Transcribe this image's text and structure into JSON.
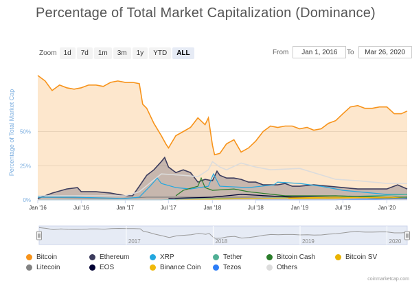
{
  "title": "Percentage of Total Market Capitalization (Dominance)",
  "zoom": {
    "label": "Zoom",
    "buttons": [
      "1d",
      "7d",
      "1m",
      "3m",
      "1y",
      "YTD",
      "ALL"
    ],
    "active": "ALL"
  },
  "range": {
    "from_label": "From",
    "from_value": "Jan 1, 2016",
    "to_label": "To",
    "to_value": "Mar 26, 2020"
  },
  "credit": "coinmarketcap.com",
  "colors": {
    "bitcoin": "#f7931a",
    "ethereum": "#3c3c5d",
    "xrp": "#23a7df",
    "tether": "#50af95",
    "bitcoin_cash": "#2b7d2b",
    "bitcoin_sv": "#eab300",
    "litecoin": "#838383",
    "eos": "#000033",
    "binance_coin": "#f0b90b",
    "tezos": "#2c7df7",
    "others": "#dcdcdc"
  },
  "chart_data": {
    "type": "area",
    "title": "Percentage of Total Market Capitalization (Dominance)",
    "ylabel": "Percentage of Total Market Cap",
    "xlabel": "",
    "ylim": [
      0,
      100
    ],
    "yticks": [
      "0%",
      "25%",
      "50%"
    ],
    "yticks_values": [
      0,
      25,
      50
    ],
    "xlim": [
      "2016-01-01",
      "2020-03-26"
    ],
    "xticks": [
      {
        "date": "2016-01-01",
        "label": "Jan '16"
      },
      {
        "date": "2016-07-01",
        "label": "Jul '16"
      },
      {
        "date": "2017-01-01",
        "label": "Jan '17"
      },
      {
        "date": "2017-07-01",
        "label": "Jul '17"
      },
      {
        "date": "2018-01-01",
        "label": "Jan '18"
      },
      {
        "date": "2018-07-01",
        "label": "Jul '18"
      },
      {
        "date": "2019-01-01",
        "label": "Jan '19"
      },
      {
        "date": "2019-07-01",
        "label": "Jul '19"
      },
      {
        "date": "2020-01-01",
        "label": "Jan '20"
      }
    ],
    "navigator_labels": [
      {
        "date": "2017-01-01",
        "label": "2017"
      },
      {
        "date": "2018-01-01",
        "label": "2018"
      },
      {
        "date": "2019-01-01",
        "label": "2019"
      },
      {
        "date": "2020-01-01",
        "label": "2020"
      }
    ],
    "grid": true,
    "legend_position": "bottom",
    "series": [
      {
        "name": "Bitcoin",
        "key": "bitcoin",
        "filled": true,
        "points": [
          [
            "2016-01-01",
            91
          ],
          [
            "2016-02-01",
            87
          ],
          [
            "2016-03-01",
            80
          ],
          [
            "2016-04-01",
            84
          ],
          [
            "2016-05-01",
            82
          ],
          [
            "2016-06-01",
            81
          ],
          [
            "2016-07-01",
            82
          ],
          [
            "2016-08-01",
            84
          ],
          [
            "2016-09-01",
            84
          ],
          [
            "2016-10-01",
            83
          ],
          [
            "2016-11-01",
            86
          ],
          [
            "2016-12-01",
            87
          ],
          [
            "2017-01-01",
            86
          ],
          [
            "2017-02-01",
            86
          ],
          [
            "2017-03-01",
            85
          ],
          [
            "2017-03-15",
            70
          ],
          [
            "2017-04-01",
            67
          ],
          [
            "2017-05-01",
            56
          ],
          [
            "2017-06-01",
            47
          ],
          [
            "2017-06-20",
            41
          ],
          [
            "2017-07-01",
            38
          ],
          [
            "2017-08-01",
            47
          ],
          [
            "2017-09-01",
            50
          ],
          [
            "2017-10-01",
            53
          ],
          [
            "2017-11-01",
            60
          ],
          [
            "2017-12-01",
            55
          ],
          [
            "2017-12-15",
            60
          ],
          [
            "2018-01-01",
            40
          ],
          [
            "2018-01-10",
            33
          ],
          [
            "2018-02-01",
            34
          ],
          [
            "2018-03-01",
            41
          ],
          [
            "2018-04-01",
            44
          ],
          [
            "2018-05-01",
            35
          ],
          [
            "2018-06-01",
            38
          ],
          [
            "2018-07-01",
            43
          ],
          [
            "2018-08-01",
            50
          ],
          [
            "2018-09-01",
            54
          ],
          [
            "2018-10-01",
            53
          ],
          [
            "2018-11-01",
            54
          ],
          [
            "2018-12-01",
            54
          ],
          [
            "2019-01-01",
            52
          ],
          [
            "2019-02-01",
            53
          ],
          [
            "2019-03-01",
            51
          ],
          [
            "2019-04-01",
            52
          ],
          [
            "2019-05-01",
            56
          ],
          [
            "2019-06-01",
            58
          ],
          [
            "2019-07-01",
            63
          ],
          [
            "2019-08-01",
            68
          ],
          [
            "2019-09-01",
            69
          ],
          [
            "2019-10-01",
            67
          ],
          [
            "2019-11-01",
            67
          ],
          [
            "2019-12-01",
            68
          ],
          [
            "2020-01-01",
            68
          ],
          [
            "2020-02-01",
            63
          ],
          [
            "2020-03-01",
            63
          ],
          [
            "2020-03-26",
            65
          ]
        ]
      },
      {
        "name": "Ethereum",
        "key": "ethereum",
        "filled": true,
        "points": [
          [
            "2016-01-01",
            1
          ],
          [
            "2016-03-01",
            5
          ],
          [
            "2016-05-01",
            8
          ],
          [
            "2016-06-15",
            9
          ],
          [
            "2016-07-01",
            6
          ],
          [
            "2016-09-01",
            6
          ],
          [
            "2016-11-01",
            5
          ],
          [
            "2017-01-01",
            3
          ],
          [
            "2017-02-01",
            3
          ],
          [
            "2017-03-01",
            10
          ],
          [
            "2017-04-01",
            18
          ],
          [
            "2017-05-01",
            22
          ],
          [
            "2017-06-01",
            28
          ],
          [
            "2017-06-15",
            31
          ],
          [
            "2017-07-01",
            24
          ],
          [
            "2017-08-01",
            20
          ],
          [
            "2017-09-01",
            22
          ],
          [
            "2017-10-01",
            20
          ],
          [
            "2017-11-01",
            13
          ],
          [
            "2017-12-01",
            15
          ],
          [
            "2018-01-01",
            14
          ],
          [
            "2018-01-20",
            21
          ],
          [
            "2018-02-01",
            18
          ],
          [
            "2018-03-01",
            16
          ],
          [
            "2018-04-01",
            16
          ],
          [
            "2018-05-01",
            15
          ],
          [
            "2018-06-01",
            13
          ],
          [
            "2018-07-01",
            13
          ],
          [
            "2018-08-01",
            11
          ],
          [
            "2018-09-01",
            11
          ],
          [
            "2018-10-01",
            11
          ],
          [
            "2018-11-01",
            12
          ],
          [
            "2018-12-01",
            10
          ],
          [
            "2019-01-01",
            10
          ],
          [
            "2019-03-01",
            11
          ],
          [
            "2019-05-01",
            10
          ],
          [
            "2019-07-01",
            9
          ],
          [
            "2019-09-01",
            8
          ],
          [
            "2019-11-01",
            8
          ],
          [
            "2020-01-01",
            8
          ],
          [
            "2020-02-15",
            11
          ],
          [
            "2020-03-26",
            8
          ]
        ]
      },
      {
        "name": "XRP",
        "key": "xrp",
        "filled": false,
        "points": [
          [
            "2016-01-01",
            2
          ],
          [
            "2016-06-01",
            2
          ],
          [
            "2017-01-01",
            1
          ],
          [
            "2017-03-01",
            2
          ],
          [
            "2017-04-15",
            10
          ],
          [
            "2017-05-15",
            16
          ],
          [
            "2017-06-01",
            12
          ],
          [
            "2017-08-01",
            9
          ],
          [
            "2017-10-01",
            8
          ],
          [
            "2017-12-15",
            10
          ],
          [
            "2018-01-05",
            19
          ],
          [
            "2018-02-01",
            10
          ],
          [
            "2018-06-01",
            9
          ],
          [
            "2018-09-15",
            11
          ],
          [
            "2018-10-01",
            13
          ],
          [
            "2019-01-01",
            12
          ],
          [
            "2019-04-01",
            10
          ],
          [
            "2019-07-01",
            7
          ],
          [
            "2020-01-01",
            4
          ],
          [
            "2020-03-26",
            4
          ]
        ]
      },
      {
        "name": "Tether",
        "key": "tether",
        "filled": false,
        "points": [
          [
            "2016-01-01",
            0
          ],
          [
            "2017-06-01",
            0
          ],
          [
            "2018-01-01",
            1
          ],
          [
            "2018-06-01",
            1
          ],
          [
            "2019-01-01",
            2
          ],
          [
            "2019-06-01",
            2
          ],
          [
            "2020-03-26",
            4
          ]
        ]
      },
      {
        "name": "Bitcoin Cash",
        "key": "bitcoin_cash",
        "filled": false,
        "points": [
          [
            "2017-08-01",
            3
          ],
          [
            "2017-09-01",
            7
          ],
          [
            "2017-11-01",
            10
          ],
          [
            "2017-11-15",
            16
          ],
          [
            "2017-12-01",
            9
          ],
          [
            "2018-01-01",
            7
          ],
          [
            "2018-04-01",
            8
          ],
          [
            "2018-06-01",
            6
          ],
          [
            "2018-11-01",
            3
          ],
          [
            "2019-01-01",
            3
          ],
          [
            "2019-06-01",
            3
          ],
          [
            "2020-01-01",
            2
          ],
          [
            "2020-03-26",
            2
          ]
        ]
      },
      {
        "name": "Bitcoin SV",
        "key": "bitcoin_sv",
        "filled": false,
        "points": [
          [
            "2018-11-15",
            1
          ],
          [
            "2019-03-01",
            1
          ],
          [
            "2020-01-15",
            2
          ],
          [
            "2020-03-26",
            1
          ]
        ]
      },
      {
        "name": "Litecoin",
        "key": "litecoin",
        "filled": false,
        "points": [
          [
            "2016-01-01",
            2
          ],
          [
            "2016-12-01",
            1
          ],
          [
            "2017-04-01",
            2
          ],
          [
            "2017-06-01",
            2
          ],
          [
            "2017-12-01",
            2
          ],
          [
            "2018-06-01",
            2
          ],
          [
            "2019-06-01",
            3
          ],
          [
            "2020-03-26",
            1
          ]
        ]
      },
      {
        "name": "EOS",
        "key": "eos",
        "filled": false,
        "points": [
          [
            "2017-07-01",
            1
          ],
          [
            "2018-01-01",
            2
          ],
          [
            "2018-05-01",
            4
          ],
          [
            "2018-12-01",
            2
          ],
          [
            "2019-06-01",
            2
          ],
          [
            "2020-03-26",
            1
          ]
        ]
      },
      {
        "name": "Binance Coin",
        "key": "binance_coin",
        "filled": false,
        "points": [
          [
            "2017-08-01",
            0
          ],
          [
            "2018-06-01",
            1
          ],
          [
            "2019-06-01",
            2
          ],
          [
            "2020-03-26",
            1
          ]
        ]
      },
      {
        "name": "Tezos",
        "key": "tezos",
        "filled": false,
        "points": [
          [
            "2018-07-01",
            0
          ],
          [
            "2019-06-01",
            0
          ],
          [
            "2020-03-26",
            1
          ]
        ]
      },
      {
        "name": "Others",
        "key": "others",
        "filled": false,
        "points": [
          [
            "2016-01-01",
            3
          ],
          [
            "2016-06-01",
            3
          ],
          [
            "2017-01-01",
            3
          ],
          [
            "2017-03-01",
            6
          ],
          [
            "2017-06-01",
            19
          ],
          [
            "2017-09-01",
            18
          ],
          [
            "2017-11-01",
            17
          ],
          [
            "2017-12-15",
            22
          ],
          [
            "2018-01-01",
            28
          ],
          [
            "2018-02-01",
            24
          ],
          [
            "2018-03-01",
            22
          ],
          [
            "2018-05-01",
            27
          ],
          [
            "2018-07-01",
            24
          ],
          [
            "2018-09-01",
            22
          ],
          [
            "2019-01-01",
            23
          ],
          [
            "2019-06-01",
            15
          ],
          [
            "2019-09-01",
            14
          ],
          [
            "2020-01-01",
            12
          ],
          [
            "2020-03-26",
            12
          ]
        ]
      }
    ]
  },
  "legend": [
    {
      "name": "Bitcoin",
      "key": "bitcoin"
    },
    {
      "name": "Ethereum",
      "key": "ethereum"
    },
    {
      "name": "XRP",
      "key": "xrp"
    },
    {
      "name": "Tether",
      "key": "tether"
    },
    {
      "name": "Bitcoin Cash",
      "key": "bitcoin_cash"
    },
    {
      "name": "Bitcoin SV",
      "key": "bitcoin_sv"
    },
    {
      "name": "Litecoin",
      "key": "litecoin"
    },
    {
      "name": "EOS",
      "key": "eos"
    },
    {
      "name": "Binance Coin",
      "key": "binance_coin"
    },
    {
      "name": "Tezos",
      "key": "tezos"
    },
    {
      "name": "Others",
      "key": "others"
    }
  ]
}
